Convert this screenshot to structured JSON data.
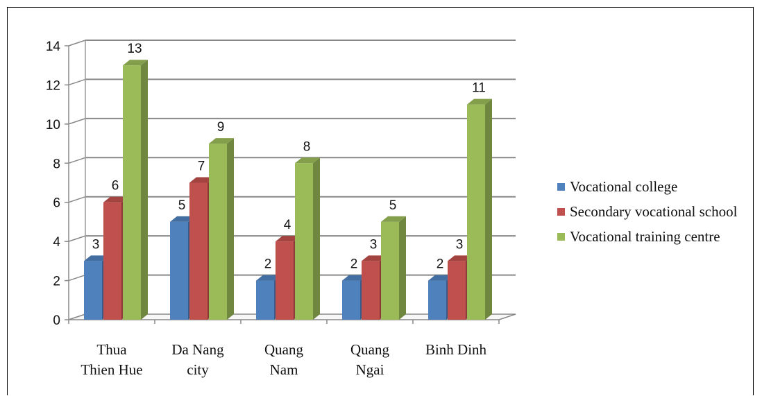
{
  "chart_data": {
    "type": "bar",
    "categories": [
      [
        "Thua",
        "Thien Hue"
      ],
      [
        "Da Nang",
        "city"
      ],
      [
        "Quang",
        "Nam"
      ],
      [
        "Quang",
        "Ngai"
      ],
      [
        "Binh Dinh"
      ]
    ],
    "series": [
      {
        "name": "Vocational college",
        "values": [
          3,
          5,
          2,
          2,
          2
        ],
        "color": "#4f81bd"
      },
      {
        "name": "Secondary vocational school",
        "values": [
          6,
          7,
          4,
          3,
          3
        ],
        "color": "#c0504d"
      },
      {
        "name": "Vocational training centre",
        "values": [
          13,
          9,
          8,
          5,
          11
        ],
        "color": "#9bbb59"
      }
    ],
    "ylim": [
      0,
      14
    ],
    "yticks": [
      0,
      2,
      4,
      6,
      8,
      10,
      12,
      14
    ],
    "grid": true,
    "legend_position": "right",
    "style": "3d-clustered-column"
  }
}
